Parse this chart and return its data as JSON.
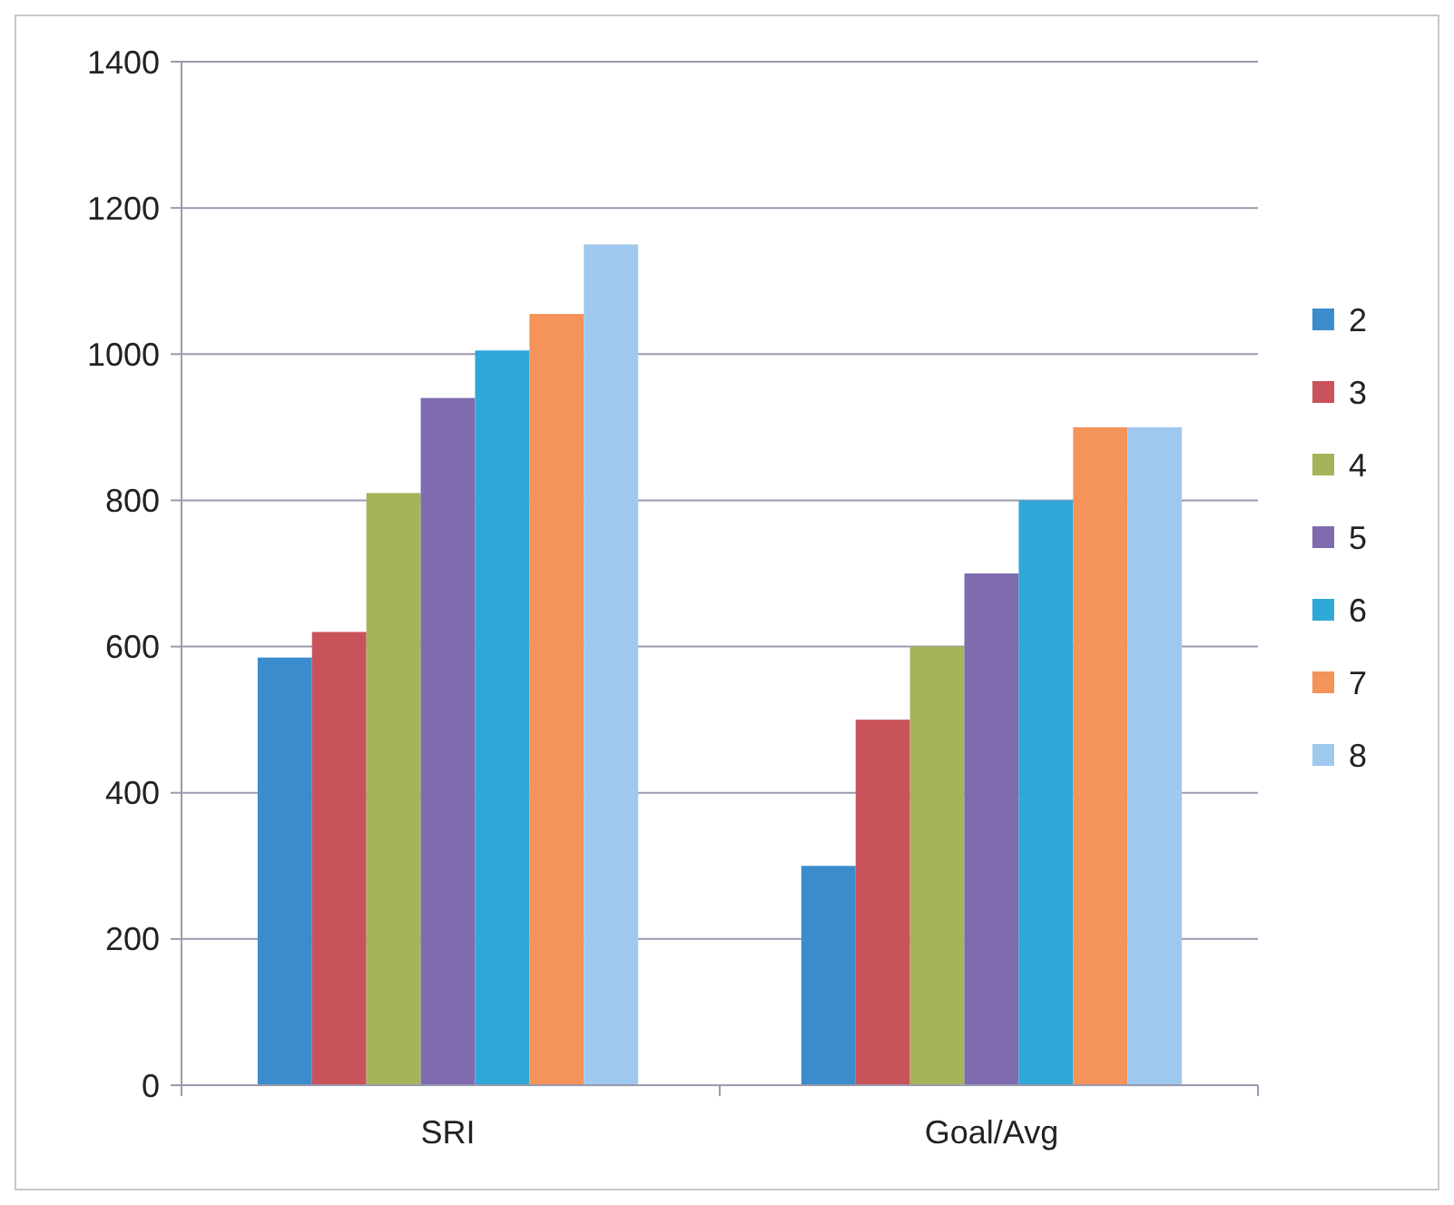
{
  "chart_data": {
    "type": "bar",
    "categories": [
      "SRI",
      "Goal/Avg"
    ],
    "series": [
      {
        "name": "2",
        "color": "#3a8ccc",
        "values": [
          585,
          300
        ]
      },
      {
        "name": "3",
        "color": "#c9535a",
        "values": [
          620,
          500
        ]
      },
      {
        "name": "4",
        "color": "#a4b458",
        "values": [
          810,
          600
        ]
      },
      {
        "name": "5",
        "color": "#7f6bb0",
        "values": [
          940,
          700
        ]
      },
      {
        "name": "6",
        "color": "#2fa8d8",
        "values": [
          1005,
          800
        ]
      },
      {
        "name": "7",
        "color": "#f4935a",
        "values": [
          1055,
          900
        ]
      },
      {
        "name": "8",
        "color": "#9fc8ee",
        "values": [
          1150,
          900
        ]
      }
    ],
    "ylim": [
      0,
      1400
    ],
    "yticks": [
      0,
      200,
      400,
      600,
      800,
      1000,
      1200,
      1400
    ],
    "grid": "y",
    "legend": "right"
  }
}
